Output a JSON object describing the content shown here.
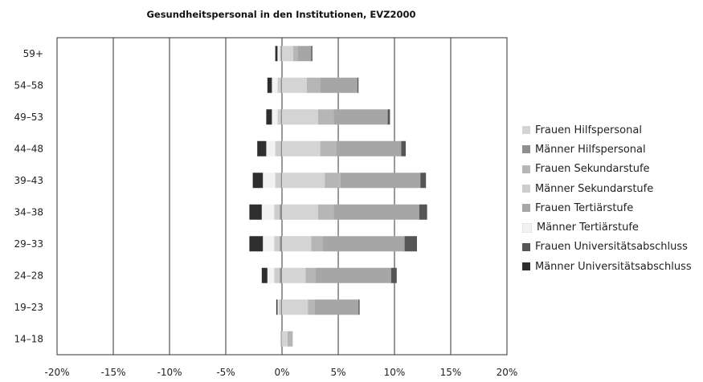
{
  "chart_data": {
    "type": "bar",
    "orientation": "horizontal",
    "stacked": true,
    "title": "Gesundheitspersonal in den Institutionen, EVZ2000",
    "xlabel": "",
    "ylabel": "",
    "xlim": [
      -20,
      20
    ],
    "x_ticks": [
      -20,
      -15,
      -10,
      -5,
      0,
      5,
      10,
      15,
      20
    ],
    "x_tick_labels": [
      "-20%",
      "-15%",
      "-10%",
      "-5%",
      "0%",
      "5%",
      "10%",
      "15%",
      "20%"
    ],
    "grid": "vertical",
    "legend_position": "right",
    "categories": [
      "59+",
      "54–58",
      "49–53",
      "44–48",
      "39–43",
      "34–38",
      "29–33",
      "24–28",
      "19–23",
      "14–18"
    ],
    "series": [
      {
        "name": "Frauen Hilfspersonal",
        "color": "#d4d4d4",
        "side": "right",
        "values": [
          1.0,
          2.2,
          3.2,
          3.4,
          3.8,
          3.2,
          2.6,
          2.1,
          2.3,
          0.5
        ]
      },
      {
        "name": "Männer Hilfspersonal",
        "color": "#8e8e8e",
        "side": "left",
        "values": [
          0.1,
          0.1,
          0.1,
          0.1,
          0.1,
          0.2,
          0.2,
          0.2,
          0.1,
          0.05
        ]
      },
      {
        "name": "Frauen Sekundarstufe",
        "color": "#b6b6b6",
        "side": "right",
        "values": [
          0.4,
          1.2,
          1.4,
          1.4,
          1.4,
          1.4,
          1.0,
          0.9,
          0.6,
          0.4
        ]
      },
      {
        "name": "Männer Sekundarstufe",
        "color": "#cdcdcd",
        "side": "left",
        "values": [
          0.1,
          0.3,
          0.3,
          0.5,
          0.5,
          0.5,
          0.5,
          0.5,
          0.2,
          0.1
        ]
      },
      {
        "name": "Frauen Tertiärstufe",
        "color": "#a6a6a6",
        "side": "right",
        "values": [
          1.2,
          3.3,
          4.8,
          5.8,
          7.1,
          7.6,
          7.3,
          6.7,
          3.9,
          0.05
        ]
      },
      {
        "name": "Männer Tertiärstufe",
        "color": "#f2f2f2",
        "side": "left",
        "values": [
          0.2,
          0.5,
          0.5,
          0.8,
          1.1,
          1.1,
          1.0,
          0.6,
          0.1,
          0.0
        ]
      },
      {
        "name": "Frauen Universitätsabschluss",
        "color": "#555555",
        "side": "right",
        "values": [
          0.1,
          0.1,
          0.2,
          0.4,
          0.5,
          0.7,
          1.1,
          0.5,
          0.1,
          0.0
        ]
      },
      {
        "name": "Männer Universitätsabschluss",
        "color": "#2e2e2e",
        "side": "left",
        "values": [
          0.2,
          0.4,
          0.5,
          0.8,
          0.9,
          1.1,
          1.2,
          0.5,
          0.1,
          0.0
        ]
      }
    ]
  }
}
